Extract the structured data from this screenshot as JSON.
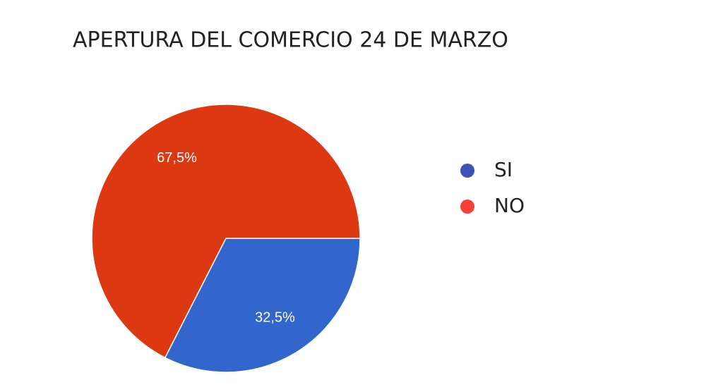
{
  "chart_data": {
    "type": "pie",
    "title": "APERTURA DEL COMERCIO 24 DE MARZO",
    "categories": [
      "SI",
      "NO"
    ],
    "values": [
      32.5,
      67.5
    ],
    "value_labels": [
      "32,5%",
      "67,5%"
    ],
    "colors": [
      "#3366cc",
      "#dc3912"
    ],
    "legend_colors": [
      "#3f51b5",
      "#f44336"
    ],
    "legend": "right"
  }
}
